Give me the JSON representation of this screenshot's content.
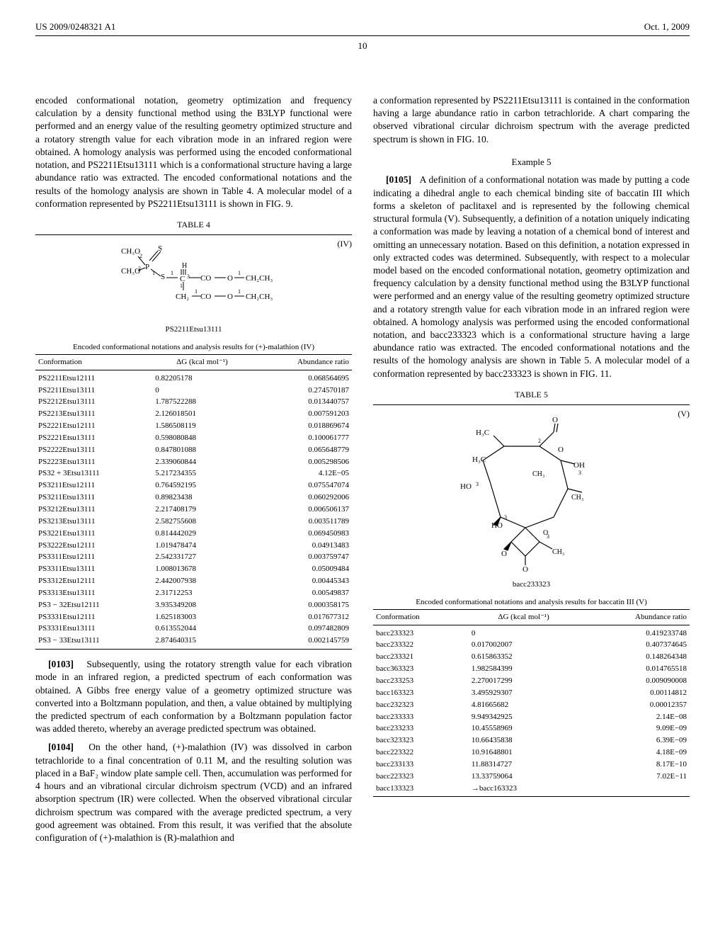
{
  "header": {
    "left": "US 2009/0248321 A1",
    "right": "Oct. 1, 2009"
  },
  "page_number": "10",
  "left_col": {
    "para_intro": "encoded conformational notation, geometry optimization and frequency calculation by a density functional method using the B3LYP functional were performed and an energy value of the resulting geometry optimized structure and a rotatory strength value for each vibration mode in an infrared region were obtained. A homology analysis was performed using the encoded conformational notation, and PS2211Etsu13111 which is a conformational structure having a large abundance ratio was extracted. The encoded conformational notations and the results of the homology analysis are shown in Table 4. A molecular model of a conformation represented by PS2211Etsu13111 is shown in FIG. 9.",
    "table4": {
      "label": "TABLE 4",
      "formula_num": "(IV)",
      "structure_caption": "PS2211Etsu13111",
      "caption": "Encoded conformational notations and analysis results for (+)-malathion (IV)",
      "columns": [
        "Conformation",
        "ΔG (kcal mol⁻¹)",
        "Abundance ratio"
      ],
      "rows": [
        [
          "PS2211Etsu12111",
          "0.82205178",
          "0.068564695"
        ],
        [
          "PS2211Etsu13111",
          "0",
          "0.274570187"
        ],
        [
          "PS2212Etsu13111",
          "1.787522288",
          "0.013440757"
        ],
        [
          "PS2213Etsu13111",
          "2.126018501",
          "0.007591203"
        ],
        [
          "PS2221Etsu12111",
          "1.586508119",
          "0.018869674"
        ],
        [
          "PS2221Etsu13111",
          "0.598080848",
          "0.100061777"
        ],
        [
          "PS2222Etsu13111",
          "0.847801088",
          "0.065648779"
        ],
        [
          "PS2223Etsu13111",
          "2.339060844",
          "0.005298506"
        ],
        [
          "PS32 + 3Etsu13111",
          "5.217234355",
          "4.12E−05"
        ],
        [
          "PS3211Etsu12111",
          "0.764592195",
          "0.075547074"
        ],
        [
          "PS3211Etsu13111",
          "0.89823438",
          "0.060292006"
        ],
        [
          "PS3212Etsu13111",
          "2.217408179",
          "0.006506137"
        ],
        [
          "PS3213Etsu13111",
          "2.582755608",
          "0.003511789"
        ],
        [
          "PS3221Etsu13111",
          "0.814442029",
          "0.069450983"
        ],
        [
          "PS3222Etsu12111",
          "1.019478474",
          "0.04913483"
        ],
        [
          "PS3311Etsu12111",
          "2.542331727",
          "0.003759747"
        ],
        [
          "PS3311Etsu13111",
          "1.008013678",
          "0.05009484"
        ],
        [
          "PS3312Etsu12111",
          "2.442007938",
          "0.00445343"
        ],
        [
          "PS3313Etsu13111",
          "2.31712253",
          "0.00549837"
        ],
        [
          "PS3 − 32Etsu12111",
          "3.935349208",
          "0.000358175"
        ],
        [
          "PS3331Etsu12111",
          "1.625183003",
          "0.017677312"
        ],
        [
          "PS3331Etsu13111",
          "0.613552044",
          "0.097482809"
        ],
        [
          "PS3 − 33Etsu13111",
          "2.874640315",
          "0.002145759"
        ]
      ]
    },
    "para_0103_num": "[0103]",
    "para_0103": "Subsequently, using the rotatory strength value for each vibration mode in an infrared region, a predicted spectrum of each conformation was obtained. A Gibbs free energy value of a geometry optimized structure was converted into a Boltzmann population, and then, a value obtained by multiplying the predicted spectrum of each conformation by a Boltzmann population factor was added thereto, whereby an average predicted spectrum was obtained.",
    "para_0104_num": "[0104]",
    "para_0104": "On the other hand, (+)-malathion (IV) was dissolved in carbon tetrachloride to a final concentration of 0.11 M, and the resulting solution was placed in a BaF₂ window plate sample cell. Then, accumulation was performed for 4 hours and an vibrational circular dichroism spectrum (VCD) and an infrared absorption spectrum (IR) were collected. When the observed vibrational circular dichroism spectrum was compared with the average predicted spectrum, a very good agreement was obtained. From this result, it was verified that the absolute configuration of (+)-malathion is (R)-malathion and"
  },
  "right_col": {
    "para_top": "a conformation represented by PS2211Etsu13111 is contained in the conformation having a large abundance ratio in carbon tetrachloride. A chart comparing the observed vibrational circular dichroism spectrum with the average predicted spectrum is shown in FIG. 10.",
    "example_heading": "Example 5",
    "para_0105_num": "[0105]",
    "para_0105": "A definition of a conformational notation was made by putting a code indicating a dihedral angle to each chemical binding site of baccatin III which forms a skeleton of paclitaxel and is represented by the following chemical structural formula (V). Subsequently, a definition of a notation uniquely indicating a conformation was made by leaving a notation of a chemical bond of interest and omitting an unnecessary notation. Based on this definition, a notation expressed in only extracted codes was determined. Subsequently, with respect to a molecular model based on the encoded conformational notation, geometry optimization and frequency calculation by a density functional method using the B3LYP functional were performed and an energy value of the resulting geometry optimized structure and a rotatory strength value for each vibration mode in an infrared region were obtained. A homology analysis was performed using the encoded conformational notation, and bacc233323 which is a conformational structure having a large abundance ratio was extracted. The encoded conformational notations and the results of the homology analysis are shown in Table 5. A molecular model of a conformation represented by bacc233323 is shown in FIG. 11.",
    "table5": {
      "label": "TABLE 5",
      "formula_num": "(V)",
      "structure_caption": "bacc233323",
      "caption": "Encoded conformational notations and analysis results for baccatin III (V)",
      "columns": [
        "Conformation",
        "ΔG (kcal mol⁻¹)",
        "Abundance ratio"
      ],
      "rows": [
        [
          "bacc233323",
          "0",
          "0.419233748"
        ],
        [
          "bacc233322",
          "0.017002007",
          "0.407374645"
        ],
        [
          "bacc233321",
          "0.615863352",
          "0.148264348"
        ],
        [
          "bacc363323",
          "1.982584399",
          "0.014765518"
        ],
        [
          "bacc233253",
          "2.270017299",
          "0.009090008"
        ],
        [
          "bacc163323",
          "3.495929307",
          "0.00114812"
        ],
        [
          "bacc232323",
          "4.81665682",
          "0.00012357"
        ],
        [
          "bacc233333",
          "9.949342925",
          "2.14E−08"
        ],
        [
          "bacc233233",
          "10.45558969",
          "9.09E−09"
        ],
        [
          "bacc323323",
          "10.66435838",
          "6.39E−09"
        ],
        [
          "bacc223322",
          "10.91648801",
          "4.18E−09"
        ],
        [
          "bacc233133",
          "11.88314727",
          "8.17E−10"
        ],
        [
          "bacc223323",
          "13.33759064",
          "7.02E−11"
        ],
        [
          "bacc133323",
          "→bacc163323",
          ""
        ]
      ]
    }
  }
}
